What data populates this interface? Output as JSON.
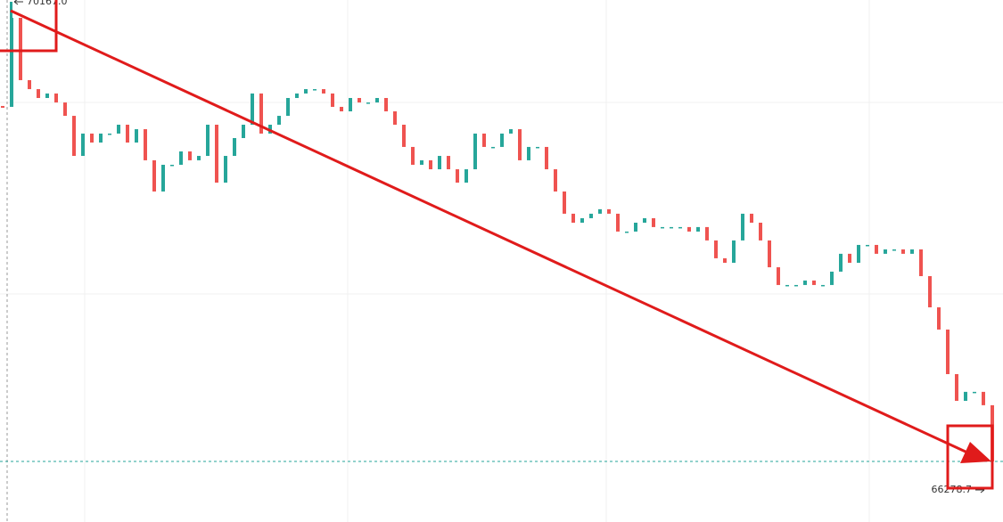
{
  "chart_data": {
    "type": "candlestick",
    "values": [
      69278,
      70031,
      69504,
      69428,
      69353,
      69391,
      69315,
      69202,
      68863,
      69052,
      68976,
      69052,
      69052,
      69127,
      68976,
      69089,
      68826,
      68562,
      68788,
      68788,
      68901,
      68826,
      68863,
      69127,
      68637,
      68863,
      69014,
      69127,
      69391,
      69052,
      69127,
      69202,
      69353,
      69391,
      69428,
      69428,
      69391,
      69278,
      69240,
      69353,
      69315,
      69315,
      69353,
      69240,
      69127,
      68939,
      68788,
      68826,
      68750,
      68863,
      68750,
      68637,
      68750,
      69052,
      68939,
      68939,
      69052,
      69089,
      68826,
      68939,
      68939,
      68750,
      68562,
      68374,
      68298,
      68336,
      68374,
      68412,
      68374,
      68223,
      68223,
      68298,
      68336,
      68261,
      68261,
      68261,
      68261,
      68223,
      68261,
      68148,
      67997,
      67959,
      68148,
      68374,
      68298,
      68148,
      67921,
      67771,
      67771,
      67771,
      67809,
      67771,
      67771,
      67884,
      68035,
      67959,
      68110,
      68110,
      68035,
      68072,
      68072,
      68035,
      68072,
      67846,
      67582,
      67394,
      67017,
      66791,
      66867,
      66867,
      66754,
      66278.7
    ],
    "up_color": "#26a69a",
    "down_color": "#ef5350",
    "ylim": [
      65766,
      70182
    ],
    "high_label": {
      "value": 70167,
      "label": "70167.0"
    },
    "last_label": {
      "value": 66278.7,
      "label": "66278.7"
    }
  }
}
